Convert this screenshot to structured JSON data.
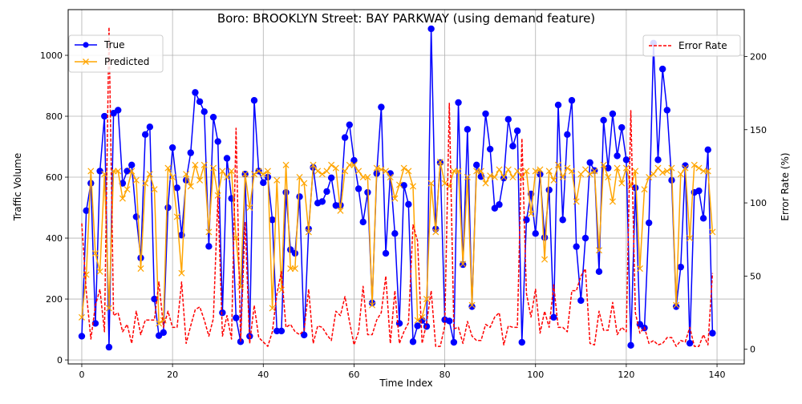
{
  "chart_data": {
    "type": "line",
    "title": "Boro: BROOKLYN Street: BAY PARKWAY (using demand feature)",
    "xlabel": "Time Index",
    "ylabel": "Traffic Volume",
    "y2label": "Error Rate (%)",
    "xlim": [
      -3,
      146
    ],
    "ylim": [
      -13,
      1150
    ],
    "y2lim": [
      -10,
      232
    ],
    "xticks": [
      "0",
      "20",
      "40",
      "60",
      "80",
      "100",
      "120",
      "140"
    ],
    "yticks": [
      "0",
      "200",
      "400",
      "600",
      "800",
      "1000"
    ],
    "y2ticks": [
      "0",
      "50",
      "100",
      "150",
      "200"
    ],
    "grid": true,
    "legend_left_position": "upper-left",
    "legend_right_position": "upper-right",
    "series": [
      {
        "name": "True",
        "axis": "left",
        "color": "#0000ff",
        "marker": "circle",
        "values": [
          78,
          490,
          580,
          120,
          620,
          800,
          42,
          810,
          820,
          580,
          620,
          640,
          470,
          335,
          740,
          765,
          200,
          80,
          90,
          500,
          697,
          565,
          410,
          590,
          680,
          878,
          848,
          815,
          373,
          797,
          717,
          155,
          662,
          530,
          138,
          60,
          610,
          78,
          852,
          620,
          582,
          600,
          460,
          95,
          95,
          550,
          362,
          350,
          536,
          82,
          430,
          632,
          515,
          520,
          553,
          598,
          507,
          508,
          730,
          772,
          655,
          562,
          453,
          550,
          187,
          612,
          830,
          350,
          612,
          415,
          120,
          573,
          511,
          60,
          112,
          130,
          110,
          1087,
          430,
          648,
          132,
          128,
          58,
          845,
          313,
          757,
          175,
          640,
          602,
          808,
          692,
          498,
          510,
          597,
          790,
          702,
          752,
          58,
          460,
          545,
          415,
          610,
          402,
          558,
          140,
          837,
          460,
          740,
          852,
          372,
          195,
          400,
          648,
          622,
          290,
          787,
          630,
          808,
          670,
          763,
          657,
          48,
          565,
          117,
          105,
          450,
          1040,
          657,
          955,
          820,
          590,
          175,
          305,
          638,
          55,
          550,
          555,
          465,
          690,
          88
        ]
      },
      {
        "name": "Predicted",
        "axis": "left",
        "color": "#ffa500",
        "marker": "x",
        "values": [
          140,
          280,
          620,
          350,
          290,
          610,
          170,
          620,
          620,
          530,
          560,
          620,
          590,
          300,
          580,
          610,
          560,
          120,
          130,
          630,
          600,
          470,
          285,
          610,
          570,
          640,
          590,
          640,
          420,
          630,
          540,
          620,
          600,
          620,
          400,
          240,
          610,
          500,
          610,
          620,
          610,
          620,
          170,
          590,
          230,
          640,
          300,
          300,
          600,
          580,
          420,
          640,
          620,
          610,
          620,
          640,
          630,
          490,
          620,
          640,
          640,
          620,
          600,
          600,
          180,
          630,
          625,
          620,
          600,
          530,
          575,
          630,
          620,
          570,
          130,
          140,
          200,
          580,
          420,
          650,
          580,
          570,
          620,
          620,
          315,
          600,
          180,
          620,
          620,
          580,
          605,
          600,
          625,
          600,
          625,
          600,
          620,
          600,
          620,
          480,
          620,
          625,
          330,
          620,
          590,
          640,
          600,
          630,
          620,
          520,
          610,
          625,
          610,
          620,
          360,
          640,
          600,
          520,
          630,
          580,
          630,
          570,
          620,
          300,
          560,
          600,
          610,
          630,
          615,
          620,
          630,
          180,
          610,
          630,
          400,
          640,
          630,
          620,
          620,
          420
        ]
      },
      {
        "name": "Error Rate",
        "axis": "right",
        "color": "#ff0000",
        "marker": "none",
        "values": [
          86,
          39,
          7,
          30,
          41,
          12,
          220,
          23,
          25,
          12,
          17,
          4,
          26,
          10,
          20,
          20,
          20,
          46,
          15,
          26,
          15,
          15,
          46,
          4,
          16,
          27,
          29,
          20,
          9,
          21,
          104,
          9,
          23,
          7,
          151,
          5,
          87,
          4,
          30,
          8,
          5,
          2,
          12,
          38,
          53,
          15,
          17,
          12,
          10,
          13,
          41,
          4,
          16,
          15,
          10,
          6,
          26,
          23,
          36,
          19,
          3,
          12,
          43,
          10,
          10,
          20,
          25,
          50,
          4,
          40,
          4,
          12,
          18,
          85,
          74,
          4,
          18,
          40,
          2,
          2,
          16,
          168,
          14,
          15,
          4,
          19,
          9,
          6,
          6,
          17,
          15,
          22,
          25,
          3,
          16,
          15,
          15,
          144,
          38,
          22,
          41,
          11,
          26,
          15,
          44,
          15,
          15,
          12,
          40,
          40,
          50,
          55,
          4,
          3,
          26,
          13,
          13,
          32,
          10,
          15,
          12,
          163,
          25,
          11,
          15,
          4,
          6,
          3,
          4,
          8,
          8,
          2,
          6,
          5,
          15,
          2,
          2,
          10,
          3,
          52
        ],
        "_note": "error rate series"
      }
    ]
  }
}
